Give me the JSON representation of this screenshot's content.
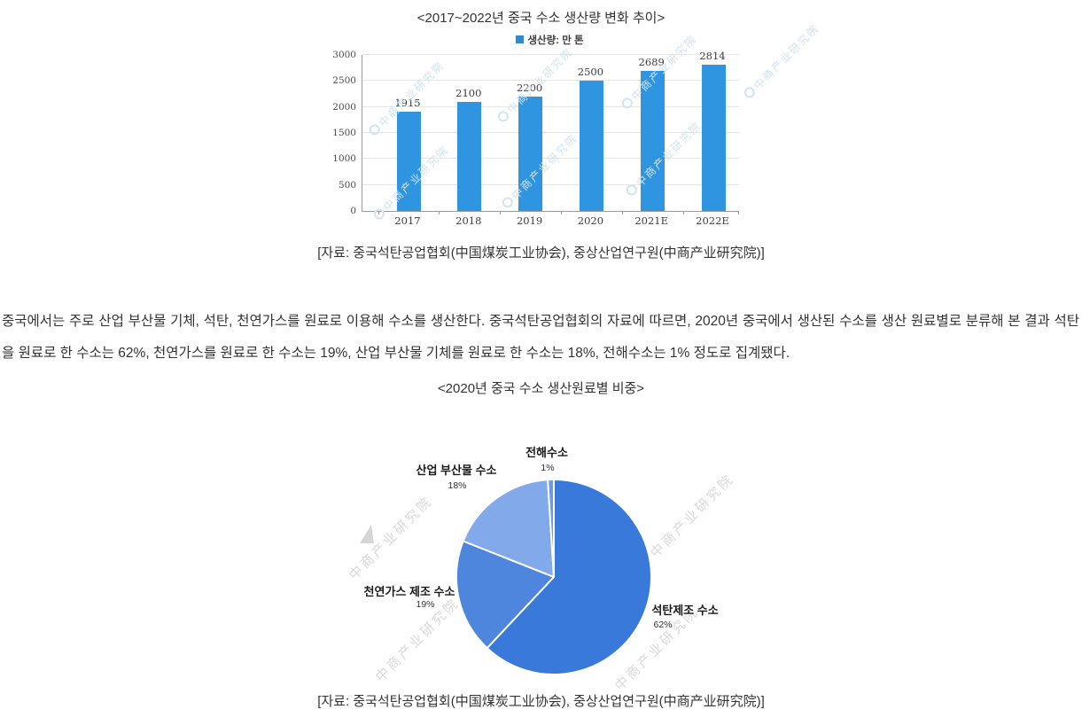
{
  "figure1": {
    "title": "<2017~2022년 중국 수소 생산량 변화 추이>",
    "source": "[자료: 중국석탄공업협회(中国煤炭工业协会), 중상산업연구원(中商产业研究院)]"
  },
  "paragraph": "중국에서는 주로 산업 부산물 기체, 석탄, 천연가스를 원료로 이용해 수소를 생산한다. 중국석탄공업협회의 자료에 따르면, 2020년 중국에서 생산된 수소를 생산 원료별로 분류해 본 결과 석탄을 원료로 한 수소는 62%, 천연가스를 원료로 한 수소는 19%, 산업 부산물 기체를 원료로 한 수소는 18%, 전해수소는 1% 정도로 집계됐다.",
  "figure2": {
    "title": "<2020년 중국 수소 생산원료별 비중>",
    "source": "[자료: 중국석탄공업협회(中国煤炭工业协会), 중상산업연구원(中商产业研究院)]"
  },
  "watermark": {
    "text": "中商产业研究院",
    "bar_color": "#cfe4f4",
    "pie_color": "#d9d9d9"
  },
  "chart_data": [
    {
      "type": "bar",
      "title": "<2017~2022년 중국 수소 생산량 변화 추이>",
      "legend": "생산량: 만 톤",
      "categories": [
        "2017",
        "2018",
        "2019",
        "2020",
        "2021E",
        "2022E"
      ],
      "values": [
        1915,
        2100,
        2200,
        2500,
        2689,
        2814
      ],
      "xlabel": "",
      "ylabel": "",
      "ylim": [
        0,
        3000
      ],
      "ytick_step": 500,
      "grid": true,
      "legend_position": "top",
      "bar_color": "#2f95e0",
      "legend_swatch_color": "#3787c8"
    },
    {
      "type": "pie",
      "title": "<2020년 중국 수소 생산원료별 비중>",
      "slices": [
        {
          "label": "석탄제조 수소",
          "pct_label": "62%",
          "value": 62,
          "color": "#3879da"
        },
        {
          "label": "천연가스 제조 수소",
          "pct_label": "19%",
          "value": 19,
          "color": "#4e86de"
        },
        {
          "label": "산업 부산물 수소",
          "pct_label": "18%",
          "value": 18,
          "color": "#82a9ea"
        },
        {
          "label": "전해수소",
          "pct_label": "1%",
          "value": 1,
          "color": "#6a9adf"
        }
      ],
      "start_angle_deg": 0,
      "direction": "clockwise",
      "legend_position": "none"
    }
  ]
}
